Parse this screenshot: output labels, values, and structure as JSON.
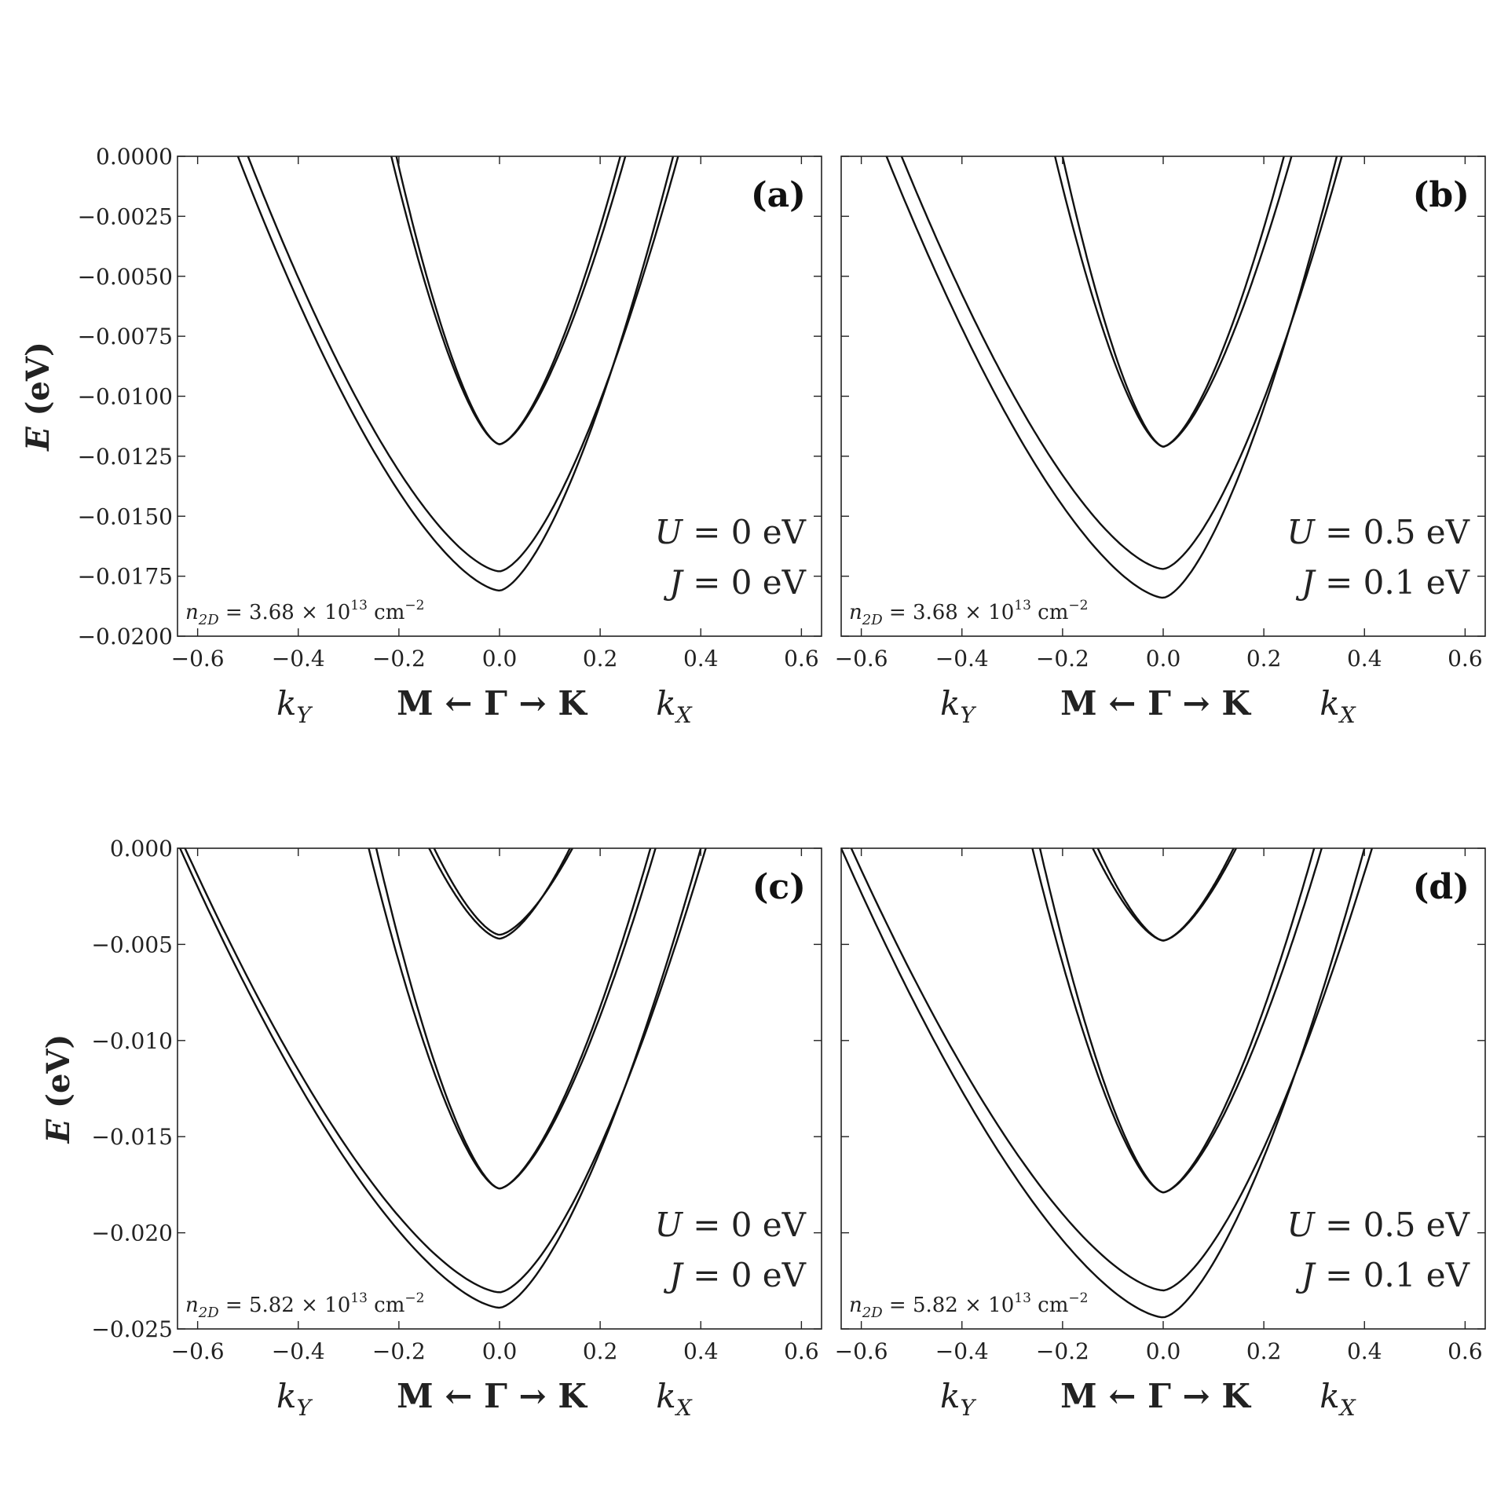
{
  "chart_data": [
    {
      "id": "a",
      "type": "line",
      "panel_label": "(a)",
      "ylabel_sym": "E",
      "ylabel_unit": "(eV)",
      "xlabel": {
        "left": "k",
        "left_sub": "Y",
        "center": "M ← Γ → K",
        "right": "k",
        "right_sub": "X"
      },
      "xlim": [
        -0.64,
        0.64
      ],
      "ylim": [
        -0.02,
        0.0
      ],
      "xticks": [
        -0.6,
        -0.4,
        -0.2,
        0.0,
        0.2,
        0.4,
        0.6
      ],
      "xtick_labels": [
        "−0.6",
        "−0.4",
        "−0.2",
        "0.0",
        "0.2",
        "0.4",
        "0.6"
      ],
      "yticks": [
        0.0,
        -0.0025,
        -0.005,
        -0.0075,
        -0.01,
        -0.0125,
        -0.015,
        -0.0175,
        -0.02
      ],
      "ytick_labels": [
        "0.0000",
        "−0.0025",
        "−0.0050",
        "−0.0075",
        "−0.0100",
        "−0.0125",
        "−0.0150",
        "−0.0175",
        "−0.0200"
      ],
      "annotations": {
        "U": "U",
        "U_value": "= 0 eV",
        "J": "J",
        "J_value": "= 0 eV",
        "n": "n",
        "n_sub": "2D",
        "n_value": "= 3.68 × 10",
        "n_exp": "13",
        "n_unit": "cm",
        "n_unit_exp": "−2"
      },
      "series": [
        {
          "min": -0.0181,
          "left_cross": -0.52,
          "right_cross": 0.345
        },
        {
          "min": -0.0173,
          "left_cross": -0.5,
          "right_cross": 0.355
        },
        {
          "min": -0.012,
          "left_cross": -0.215,
          "right_cross": 0.24
        },
        {
          "min": -0.012,
          "left_cross": -0.205,
          "right_cross": 0.25
        }
      ]
    },
    {
      "id": "b",
      "type": "line",
      "panel_label": "(b)",
      "ylabel_sym": "",
      "ylabel_unit": "",
      "xlabel": {
        "left": "k",
        "left_sub": "Y",
        "center": "M ← Γ → K",
        "right": "k",
        "right_sub": "X"
      },
      "xlim": [
        -0.64,
        0.64
      ],
      "ylim": [
        -0.02,
        0.0
      ],
      "xticks": [
        -0.6,
        -0.4,
        -0.2,
        0.0,
        0.2,
        0.4,
        0.6
      ],
      "xtick_labels": [
        "−0.6",
        "−0.4",
        "−0.2",
        "0.0",
        "0.2",
        "0.4",
        "0.6"
      ],
      "yticks": [
        0.0,
        -0.0025,
        -0.005,
        -0.0075,
        -0.01,
        -0.0125,
        -0.015,
        -0.0175,
        -0.02
      ],
      "ytick_labels": [],
      "annotations": {
        "U": "U",
        "U_value": "= 0.5 eV",
        "J": "J",
        "J_value": "= 0.1 eV",
        "n": "n",
        "n_sub": "2D",
        "n_value": "= 3.68 × 10",
        "n_exp": "13",
        "n_unit": "cm",
        "n_unit_exp": "−2"
      },
      "series": [
        {
          "min": -0.0184,
          "left_cross": -0.55,
          "right_cross": 0.345
        },
        {
          "min": -0.0172,
          "left_cross": -0.52,
          "right_cross": 0.355
        },
        {
          "min": -0.0121,
          "left_cross": -0.215,
          "right_cross": 0.24
        },
        {
          "min": -0.0121,
          "left_cross": -0.2,
          "right_cross": 0.255
        }
      ]
    },
    {
      "id": "c",
      "type": "line",
      "panel_label": "(c)",
      "ylabel_sym": "E",
      "ylabel_unit": "(eV)",
      "xlabel": {
        "left": "k",
        "left_sub": "Y",
        "center": "M ← Γ → K",
        "right": "k",
        "right_sub": "X"
      },
      "xlim": [
        -0.64,
        0.64
      ],
      "ylim": [
        -0.025,
        0.0
      ],
      "xticks": [
        -0.6,
        -0.4,
        -0.2,
        0.0,
        0.2,
        0.4,
        0.6
      ],
      "xtick_labels": [
        "−0.6",
        "−0.4",
        "−0.2",
        "0.0",
        "0.2",
        "0.4",
        "0.6"
      ],
      "yticks": [
        0.0,
        -0.005,
        -0.01,
        -0.015,
        -0.02,
        -0.025
      ],
      "ytick_labels": [
        "0.000",
        "−0.005",
        "−0.010",
        "−0.015",
        "−0.020",
        "−0.025"
      ],
      "annotations": {
        "U": "U",
        "U_value": "= 0 eV",
        "J": "J",
        "J_value": "= 0 eV",
        "n": "n",
        "n_sub": "2D",
        "n_value": "= 5.82 × 10",
        "n_exp": "13",
        "n_unit": "cm",
        "n_unit_exp": "−2"
      },
      "series": [
        {
          "min": -0.0239,
          "left_cross": -0.635,
          "right_cross": 0.4
        },
        {
          "min": -0.0231,
          "left_cross": -0.625,
          "right_cross": 0.41
        },
        {
          "min": -0.0177,
          "left_cross": -0.26,
          "right_cross": 0.3
        },
        {
          "min": -0.0177,
          "left_cross": -0.245,
          "right_cross": 0.31
        },
        {
          "min": -0.0047,
          "left_cross": -0.14,
          "right_cross": 0.14
        },
        {
          "min": -0.0045,
          "left_cross": -0.13,
          "right_cross": 0.145
        }
      ]
    },
    {
      "id": "d",
      "type": "line",
      "panel_label": "(d)",
      "ylabel_sym": "",
      "ylabel_unit": "",
      "xlabel": {
        "left": "k",
        "left_sub": "Y",
        "center": "M ← Γ → K",
        "right": "k",
        "right_sub": "X"
      },
      "xlim": [
        -0.64,
        0.64
      ],
      "ylim": [
        -0.025,
        0.0
      ],
      "xticks": [
        -0.6,
        -0.4,
        -0.2,
        0.0,
        0.2,
        0.4,
        0.6
      ],
      "xtick_labels": [
        "−0.6",
        "−0.4",
        "−0.2",
        "0.0",
        "0.2",
        "0.4",
        "0.6"
      ],
      "yticks": [
        0.0,
        -0.005,
        -0.01,
        -0.015,
        -0.02,
        -0.025
      ],
      "ytick_labels": [],
      "annotations": {
        "U": "U",
        "U_value": "= 0.5 eV",
        "J": "J",
        "J_value": "= 0.1 eV",
        "n": "n",
        "n_sub": "2D",
        "n_value": "= 5.82 × 10",
        "n_exp": "13",
        "n_unit": "cm",
        "n_unit_exp": "−2"
      },
      "series": [
        {
          "min": -0.0244,
          "left_cross": -0.64,
          "right_cross": 0.4
        },
        {
          "min": -0.023,
          "left_cross": -0.62,
          "right_cross": 0.415
        },
        {
          "min": -0.0179,
          "left_cross": -0.26,
          "right_cross": 0.3
        },
        {
          "min": -0.0179,
          "left_cross": -0.245,
          "right_cross": 0.315
        },
        {
          "min": -0.0048,
          "left_cross": -0.14,
          "right_cross": 0.14
        },
        {
          "min": -0.0048,
          "left_cross": -0.13,
          "right_cross": 0.145
        }
      ]
    }
  ]
}
